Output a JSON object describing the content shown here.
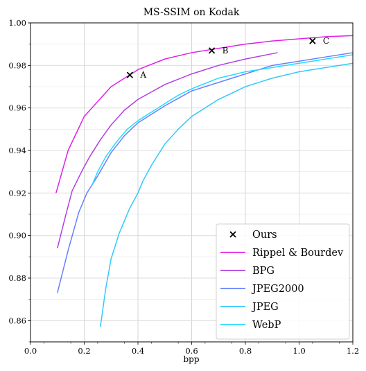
{
  "chart_data": {
    "type": "line",
    "title": "MS-SSIM on Kodak",
    "xlabel": "bpp",
    "ylabel": "",
    "xlim": [
      0.0,
      1.2
    ],
    "ylim": [
      0.85,
      1.0
    ],
    "xticks": [
      "0.0",
      "0.2",
      "0.4",
      "0.6",
      "0.8",
      "1.0",
      "1.2"
    ],
    "yticks": [
      "0.86",
      "0.88",
      "0.90",
      "0.92",
      "0.94",
      "0.96",
      "0.98",
      "1.00"
    ],
    "grid": true,
    "legend_position": "bottom-right",
    "series": [
      {
        "name": "Rippel & Bourdev",
        "color": "#e020e8",
        "x": [
          0.095,
          0.14,
          0.2,
          0.3,
          0.4,
          0.5,
          0.6,
          0.7,
          0.8,
          0.9,
          1.0,
          1.1,
          1.2
        ],
        "y": [
          0.92,
          0.94,
          0.956,
          0.97,
          0.978,
          0.983,
          0.986,
          0.988,
          0.99,
          0.9915,
          0.9925,
          0.9935,
          0.994
        ]
      },
      {
        "name": "BPG",
        "color": "#b040e0",
        "x": [
          0.1,
          0.13,
          0.155,
          0.19,
          0.22,
          0.26,
          0.3,
          0.35,
          0.4,
          0.5,
          0.6,
          0.7,
          0.8,
          0.92
        ],
        "y": [
          0.894,
          0.909,
          0.921,
          0.93,
          0.937,
          0.945,
          0.952,
          0.959,
          0.964,
          0.971,
          0.976,
          0.98,
          0.983,
          0.986
        ]
      },
      {
        "name": "JPEG2000",
        "color": "#6680ff",
        "x": [
          0.1,
          0.14,
          0.18,
          0.21,
          0.25,
          0.3,
          0.35,
          0.4,
          0.5,
          0.6,
          0.7,
          0.8,
          0.9,
          1.0,
          1.1,
          1.2
        ],
        "y": [
          0.873,
          0.893,
          0.911,
          0.92,
          0.928,
          0.939,
          0.947,
          0.953,
          0.961,
          0.968,
          0.972,
          0.976,
          0.98,
          0.982,
          0.984,
          0.986
        ]
      },
      {
        "name": "JPEG",
        "color": "#33c8ff",
        "x": [
          0.26,
          0.28,
          0.3,
          0.33,
          0.37,
          0.4,
          0.42,
          0.45,
          0.5,
          0.55,
          0.6,
          0.7,
          0.8,
          0.9,
          1.0,
          1.1,
          1.2
        ],
        "y": [
          0.857,
          0.875,
          0.889,
          0.901,
          0.913,
          0.92,
          0.926,
          0.933,
          0.943,
          0.95,
          0.956,
          0.964,
          0.97,
          0.974,
          0.977,
          0.979,
          0.981
        ]
      },
      {
        "name": "WebP",
        "color": "#22dcff",
        "x": [
          0.23,
          0.25,
          0.28,
          0.32,
          0.36,
          0.4,
          0.45,
          0.5,
          0.55,
          0.6,
          0.7,
          0.8,
          0.9,
          1.0,
          1.1,
          1.2
        ],
        "y": [
          0.924,
          0.93,
          0.937,
          0.944,
          0.95,
          0.954,
          0.958,
          0.962,
          0.966,
          0.969,
          0.974,
          0.977,
          0.979,
          0.981,
          0.983,
          0.985
        ]
      }
    ],
    "ours": {
      "name": "Ours",
      "color": "#000000",
      "marker": "x",
      "points": [
        {
          "x": 0.37,
          "y": 0.9755,
          "label": "A"
        },
        {
          "x": 0.675,
          "y": 0.987,
          "label": "B"
        },
        {
          "x": 1.05,
          "y": 0.9915,
          "label": "C"
        }
      ]
    }
  }
}
